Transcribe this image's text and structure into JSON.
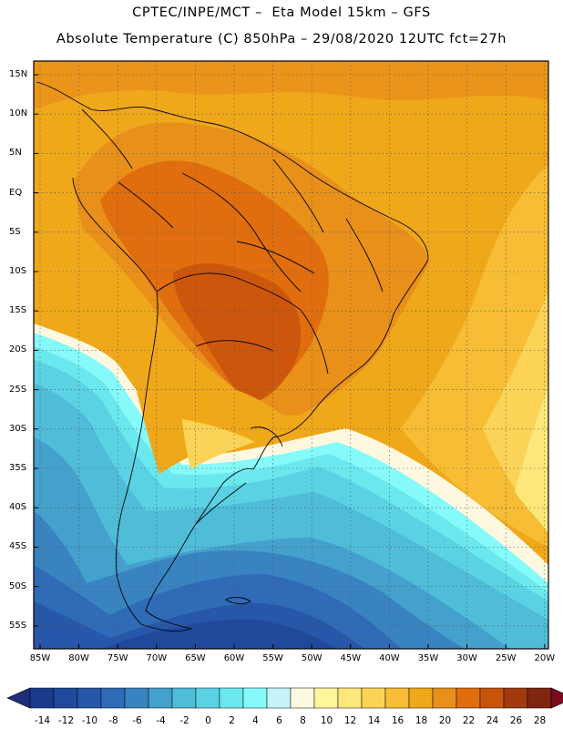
{
  "title": {
    "line1": "CPTEC/INPE/MCT –  Eta Model 15km – GFS",
    "line2": "Absolute Temperature (C) 850hPa – 29/08/2020 12UTC fct=27h"
  },
  "map": {
    "lat_labels": [
      "15N",
      "10N",
      "5N",
      "EQ",
      "5S",
      "10S",
      "15S",
      "20S",
      "25S",
      "30S",
      "35S",
      "40S",
      "45S",
      "50S",
      "55S"
    ],
    "lon_labels": [
      "85W",
      "80W",
      "75W",
      "70W",
      "65W",
      "60W",
      "55W",
      "50W",
      "45W",
      "40W",
      "35W",
      "30W",
      "25W",
      "20W"
    ]
  },
  "colorbar": {
    "labels": [
      "-14",
      "-12",
      "-10",
      "-8",
      "-6",
      "-4",
      "-2",
      "0",
      "2",
      "4",
      "6",
      "8",
      "10",
      "12",
      "14",
      "16",
      "18",
      "20",
      "22",
      "24",
      "26",
      "28"
    ],
    "colors": [
      "#1b3a8c",
      "#20489b",
      "#2757a8",
      "#2f6bb6",
      "#3983c1",
      "#44a0cc",
      "#4fbcd8",
      "#5bd2e3",
      "#6be8ee",
      "#86fafa",
      "#c9f3fb",
      "#fff8e0",
      "#fff59a",
      "#fde77a",
      "#fbd457",
      "#f6bd35",
      "#f0a81b",
      "#e8901a",
      "#e06e0e",
      "#c8540c",
      "#a23a0e",
      "#7e2610"
    ],
    "low_color": "#1d2f7a",
    "high_color": "#7c0b22"
  }
}
